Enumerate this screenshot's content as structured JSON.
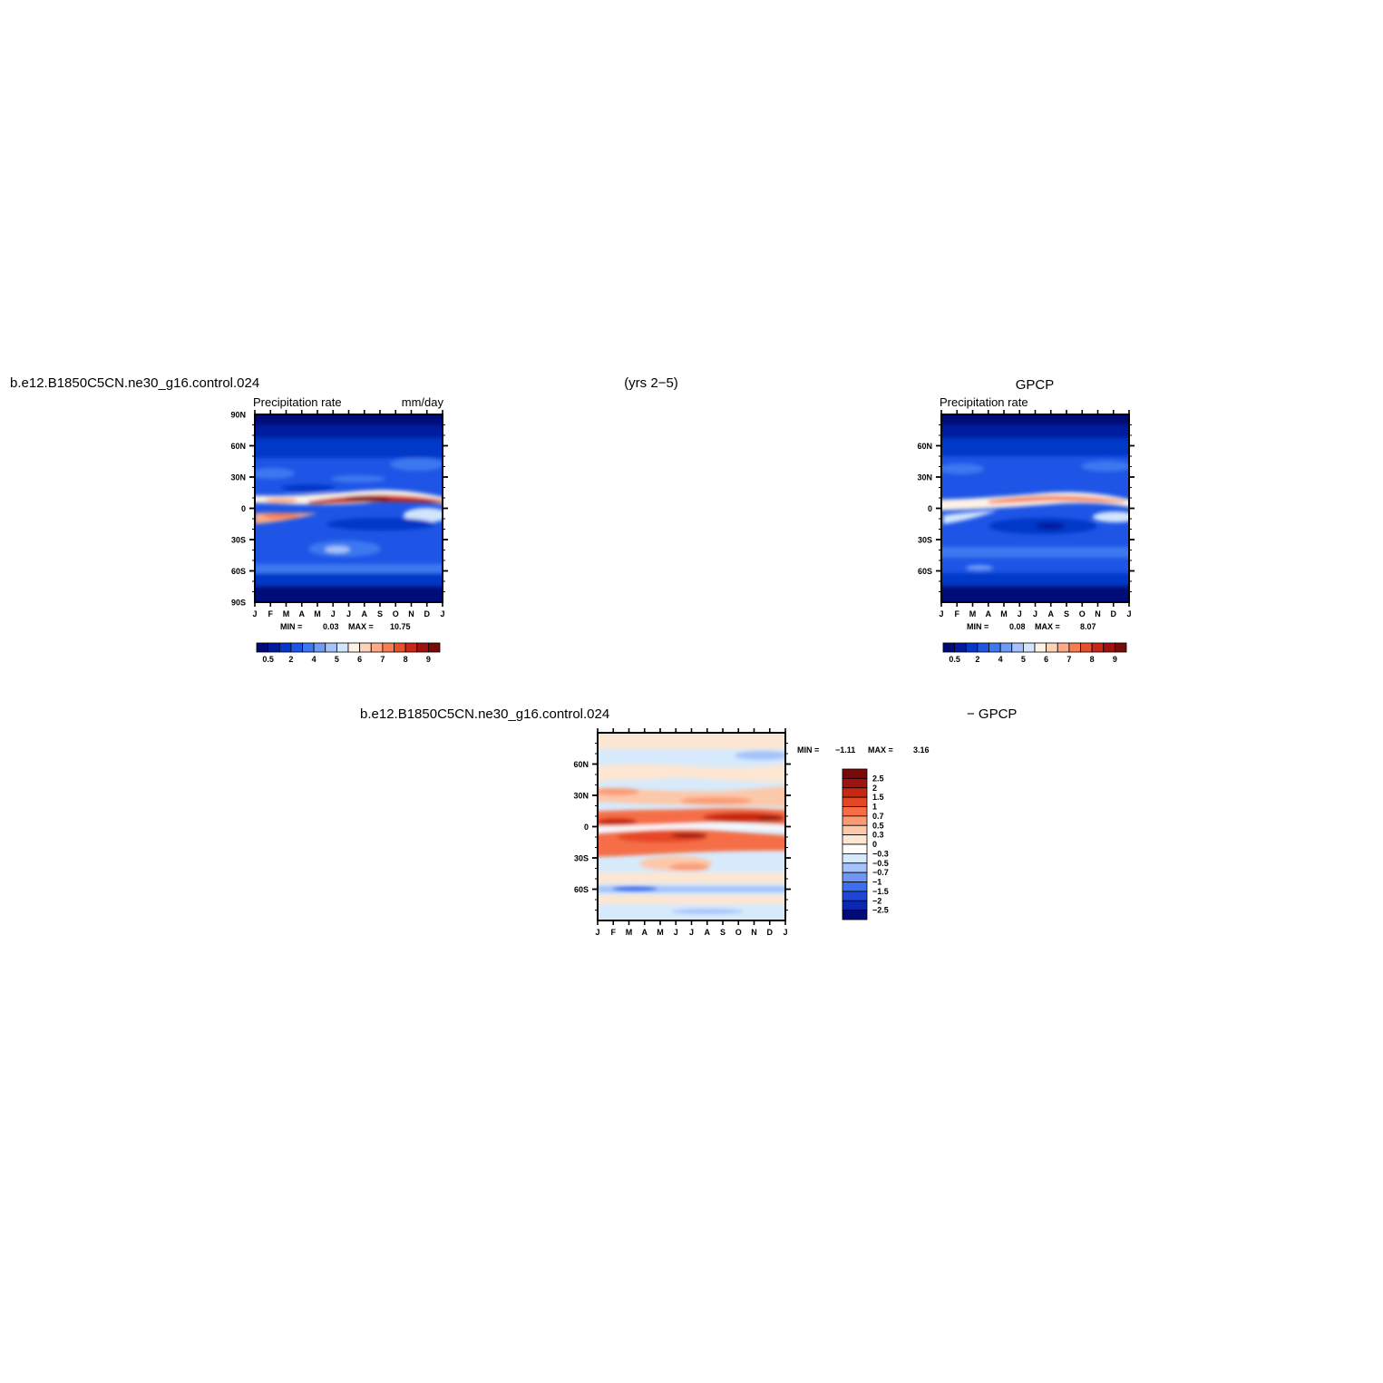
{
  "header": {
    "model_title": "b.e12.B1850C5CN.ne30_g16.control.024",
    "years": "(yrs 2−5)",
    "obs_title": "GPCP"
  },
  "diff_header": {
    "model_title": "b.e12.B1850C5CN.ne30_g16.control.024",
    "minus_label": "− GPCP"
  },
  "months": [
    "J",
    "F",
    "M",
    "A",
    "M",
    "J",
    "J",
    "A",
    "S",
    "O",
    "N",
    "D",
    "J"
  ],
  "palettes": {
    "abs": [
      "#000a78",
      "#001aa0",
      "#0637c8",
      "#1e55e6",
      "#3c78f0",
      "#6e9cf5",
      "#a5c3fa",
      "#d2e5fc",
      "#fdf2e6",
      "#fdd2b9",
      "#fcaa87",
      "#f77d55",
      "#e6502d",
      "#c82819",
      "#a01010",
      "#780a0a"
    ],
    "diff": [
      "#000a78",
      "#0a28af",
      "#1e46d7",
      "#3c6ef0",
      "#6e96f5",
      "#a5c3fa",
      "#d7eafc",
      "#fffcfa",
      "#fde6d2",
      "#fcc8aa",
      "#fa9b73",
      "#f56e46",
      "#e64628",
      "#c8280f",
      "#a01410",
      "#780a0a"
    ]
  },
  "chart_data": [
    {
      "type": "heatmap",
      "name": "model",
      "title": "Precipitation  rate",
      "units": "mm/day",
      "x": [
        "J",
        "F",
        "M",
        "A",
        "M",
        "J",
        "J",
        "A",
        "S",
        "O",
        "N",
        "D",
        "J"
      ],
      "y_ticks": [
        "90N",
        "60N",
        "30N",
        "0",
        "30S",
        "60S",
        "90S"
      ],
      "ylim": [
        -90,
        90
      ],
      "min_label": "MIN =",
      "min_value": "0.03",
      "max_label": "MAX =",
      "max_value": "10.75",
      "levels": [
        0.5,
        1,
        2,
        3,
        4,
        4.5,
        5,
        5.5,
        6,
        6.5,
        7,
        7.5,
        8,
        8.5,
        9
      ],
      "colorbar_labels": [
        "0.5",
        "2",
        "4",
        "5",
        "6",
        "7",
        "8",
        "9"
      ],
      "colorbar_orientation": "horizontal"
    },
    {
      "type": "heatmap",
      "name": "obs",
      "title": "Precipitation  rate",
      "x": [
        "J",
        "F",
        "M",
        "A",
        "M",
        "J",
        "J",
        "A",
        "S",
        "O",
        "N",
        "D",
        "J"
      ],
      "y_ticks": [
        "60N",
        "30N",
        "0",
        "30S",
        "60S"
      ],
      "ylim": [
        -90,
        90
      ],
      "min_label": "MIN =",
      "min_value": "0.08",
      "max_label": "MAX =",
      "max_value": "8.07",
      "levels": [
        0.5,
        1,
        2,
        3,
        4,
        4.5,
        5,
        5.5,
        6,
        6.5,
        7,
        7.5,
        8,
        8.5,
        9
      ],
      "colorbar_labels": [
        "0.5",
        "2",
        "4",
        "5",
        "6",
        "7",
        "8",
        "9"
      ],
      "colorbar_orientation": "horizontal"
    },
    {
      "type": "heatmap",
      "name": "difference",
      "x": [
        "J",
        "F",
        "M",
        "A",
        "M",
        "J",
        "J",
        "A",
        "S",
        "O",
        "N",
        "D",
        "J"
      ],
      "y_ticks": [
        "60N",
        "30N",
        "0",
        "30S",
        "60S"
      ],
      "ylim": [
        -90,
        90
      ],
      "min_label": "MIN =",
      "min_value": "−1.11",
      "max_label": "MAX =",
      "max_value": "3.16",
      "levels": [
        -2.5,
        -2,
        -1.5,
        -1,
        -0.7,
        -0.5,
        -0.3,
        0,
        0.3,
        0.5,
        0.7,
        1,
        1.5,
        2,
        2.5
      ],
      "colorbar_labels": [
        "2.5",
        "2",
        "1.5",
        "1",
        "0.7",
        "0.5",
        "0.3",
        "0",
        "−0.3",
        "−0.5",
        "−0.7",
        "−1",
        "−1.5",
        "−2",
        "−2.5"
      ],
      "colorbar_orientation": "vertical"
    }
  ]
}
